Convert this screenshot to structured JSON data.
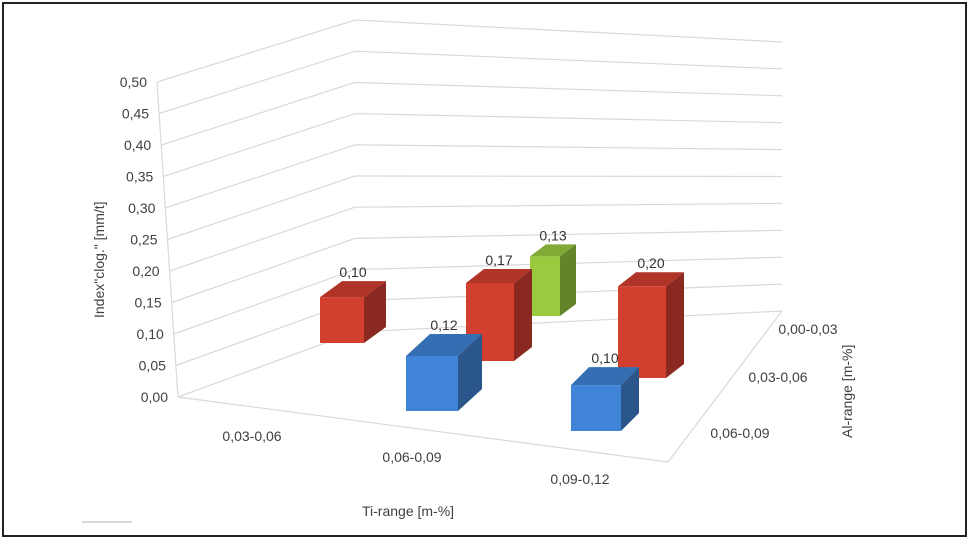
{
  "chart_data": {
    "type": "bar",
    "subtype": "3d-column",
    "x_categories": [
      "0,03-0,06",
      "0,06-0,09",
      "0,09-0,12"
    ],
    "z_categories": [
      "0,00-0,03",
      "0,03-0,06",
      "0,06-0,09"
    ],
    "xlabel": "Ti-range [m-%]",
    "ylabel": "Index\"clog.\" [mm/t]",
    "zlabel": "Al-range [m-%]",
    "ylim": [
      0,
      0.5
    ],
    "yticks": [
      "0,00",
      "0,05",
      "0,10",
      "0,15",
      "0,20",
      "0,25",
      "0,30",
      "0,35",
      "0,40",
      "0,45",
      "0,50"
    ],
    "grid": true,
    "legend": "none",
    "bars": [
      {
        "ti": "0,03-0,06",
        "al": "0,03-0,06",
        "value": 0.1,
        "label": "0,10",
        "color": "#c0392b"
      },
      {
        "ti": "0,06-0,09",
        "al": "0,06-0,09",
        "value": 0.12,
        "label": "0,12",
        "color": "#3a78c3"
      },
      {
        "ti": "0,06-0,09",
        "al": "0,03-0,06",
        "value": 0.17,
        "label": "0,17",
        "color": "#c0392b"
      },
      {
        "ti": "0,06-0,09",
        "al": "0,00-0,03",
        "value": 0.13,
        "label": "0,13",
        "color": "#8bb83a"
      },
      {
        "ti": "0,09-0,12",
        "al": "0,06-0,09",
        "value": 0.1,
        "label": "0,10",
        "color": "#3a78c3"
      },
      {
        "ti": "0,09-0,12",
        "al": "0,03-0,06",
        "value": 0.2,
        "label": "0,20",
        "color": "#c0392b"
      }
    ]
  },
  "colors": {
    "red": "#d24a3e",
    "blue": "#3f7fcc",
    "green": "#9ac442"
  }
}
